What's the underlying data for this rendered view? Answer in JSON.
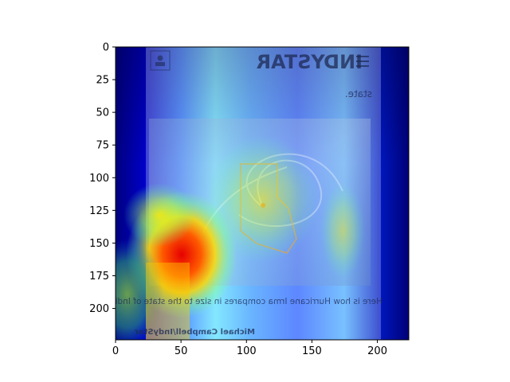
{
  "chart_data": {
    "type": "heatmap",
    "description_kind": "image with attention heatmap overlay",
    "title": "",
    "xlabel": "",
    "ylabel": "",
    "xlim": [
      0,
      224
    ],
    "ylim": [
      224,
      0
    ],
    "x_ticks": [
      0,
      50,
      100,
      150,
      200
    ],
    "y_ticks": [
      0,
      25,
      50,
      75,
      100,
      125,
      150,
      175,
      200
    ],
    "colormap": "jet",
    "grid": false,
    "legend": "none",
    "underlying_image": {
      "brand_text_mirrored": "INDYSTAR",
      "caption_mirrored": "Here is how Hurricane Irma compares in size to the state of Indiana",
      "credit_mirrored": "Michael Campbell/IndyStar",
      "top_fragment_mirrored": "state."
    }
  }
}
